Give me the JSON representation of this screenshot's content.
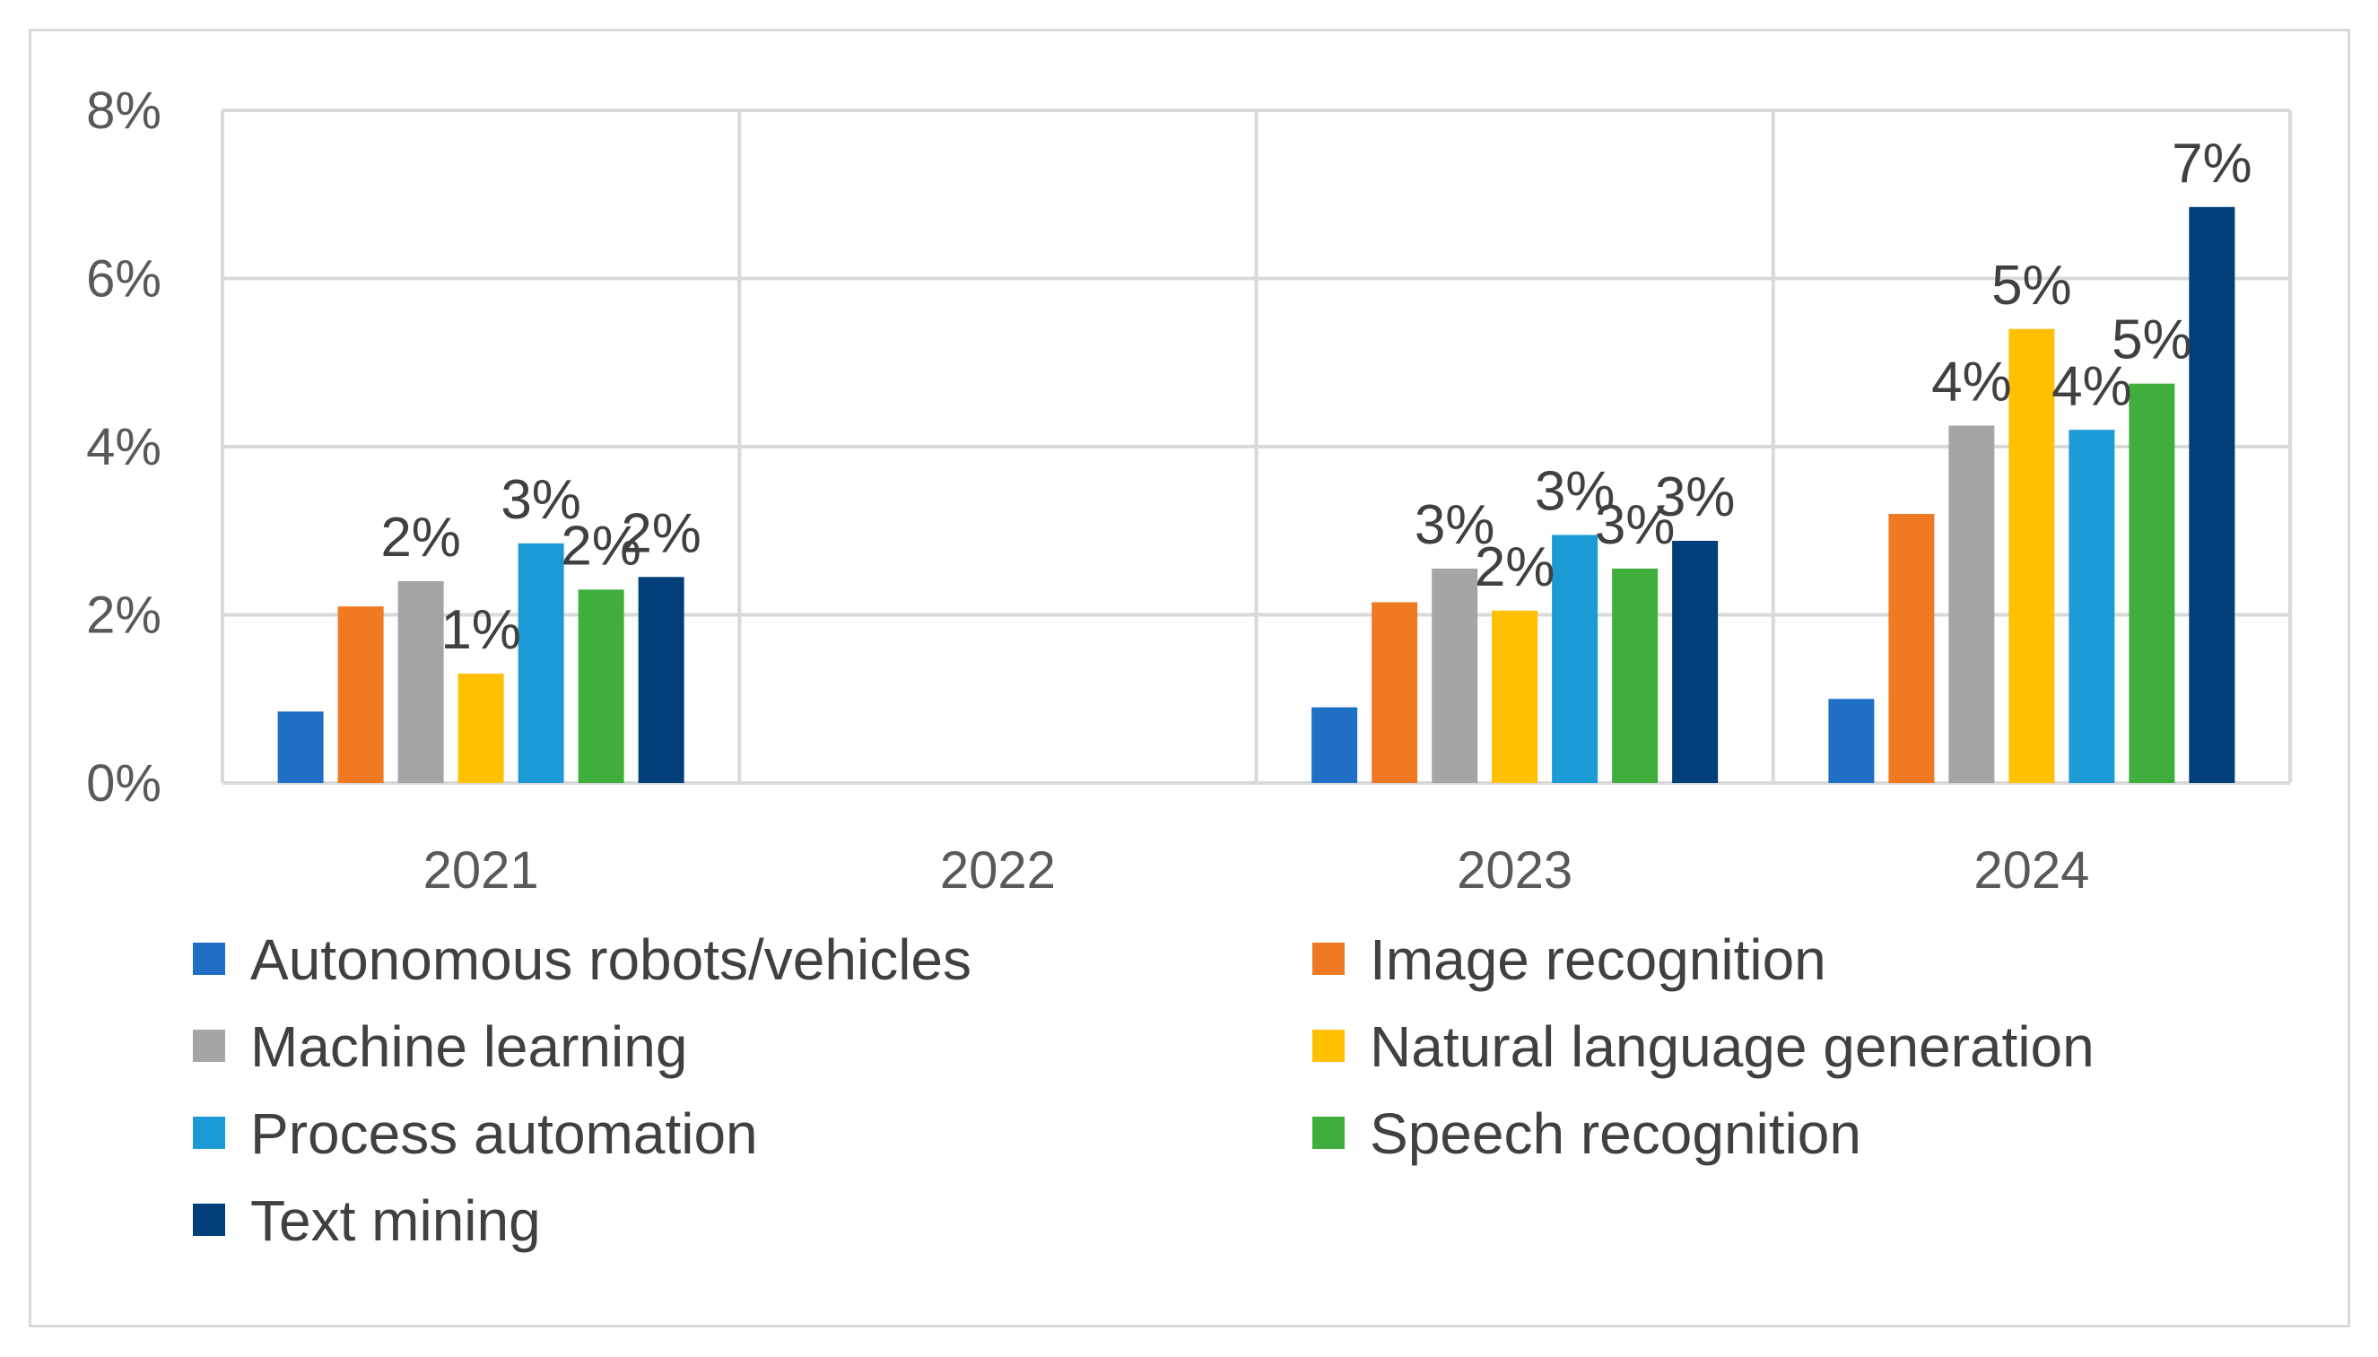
{
  "chart_data": {
    "type": "bar",
    "title": "",
    "xlabel": "",
    "ylabel": "",
    "ylim": [
      0,
      8
    ],
    "y_ticks": [
      "0%",
      "2%",
      "4%",
      "6%",
      "8%"
    ],
    "y_tick_values": [
      0,
      2,
      4,
      6,
      8
    ],
    "grid": true,
    "legend_position": "bottom",
    "categories": [
      "2021",
      "2022",
      "2023",
      "2024"
    ],
    "series": [
      {
        "name": "Autonomous robots/vehicles",
        "color": "#1f6fc5",
        "values": [
          0.85,
          null,
          0.9,
          1.0
        ],
        "labels": [
          "",
          "",
          "",
          ""
        ]
      },
      {
        "name": "Image recognition",
        "color": "#f07a24",
        "values": [
          2.1,
          null,
          2.15,
          3.2
        ],
        "labels": [
          "",
          "",
          "",
          ""
        ]
      },
      {
        "name": "Machine learning",
        "color": "#a5a5a5",
        "values": [
          2.4,
          null,
          2.55,
          4.25
        ],
        "labels": [
          "2%",
          "",
          "3%",
          "4%"
        ]
      },
      {
        "name": "Natural language generation",
        "color": "#ffc000",
        "values": [
          1.3,
          null,
          2.05,
          5.4
        ],
        "labels": [
          "1%",
          "",
          "2%",
          "5%"
        ]
      },
      {
        "name": "Process automation",
        "color": "#1b9ad6",
        "values": [
          2.85,
          null,
          2.95,
          4.2
        ],
        "labels": [
          "3%",
          "",
          "3%",
          "4%"
        ]
      },
      {
        "name": "Speech recognition",
        "color": "#3fae3c",
        "values": [
          2.3,
          null,
          2.55,
          4.75
        ],
        "labels": [
          "2%",
          "",
          "3%",
          "5%"
        ]
      },
      {
        "name": "Text mining",
        "color": "#003f7a",
        "values": [
          2.45,
          null,
          2.88,
          6.85
        ],
        "labels": [
          "2%",
          "",
          "3%",
          "7%"
        ]
      }
    ]
  }
}
